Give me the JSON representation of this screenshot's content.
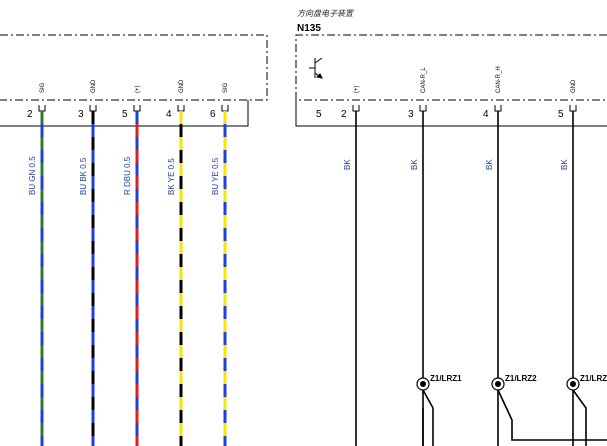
{
  "components": {
    "n135": {
      "description": "方向盘电子装置",
      "id": "N135",
      "extra_pin": "5"
    }
  },
  "left_wires": [
    {
      "pin": "2",
      "function": "SIG",
      "label": "BU GN 0.5",
      "colors": [
        "#1f3fd6",
        "#2e7d32"
      ]
    },
    {
      "pin": "3",
      "function": "GND",
      "label": "BU BK 0.5",
      "colors": [
        "#1f3fd6",
        "#000000"
      ]
    },
    {
      "pin": "5",
      "function": "(+)",
      "label": "R DBU 0.5",
      "colors": [
        "#e02020",
        "#1f3fd6"
      ]
    },
    {
      "pin": "4",
      "function": "GND",
      "label": "BK YE 0.5",
      "colors": [
        "#000000",
        "#f6e600"
      ]
    },
    {
      "pin": "6",
      "function": "SIG",
      "label": "BU YE 0.5",
      "colors": [
        "#1f3fd6",
        "#f6e600"
      ]
    }
  ],
  "right_wires": [
    {
      "pin": "2",
      "function": "(+)",
      "label": "BK",
      "connector": ""
    },
    {
      "pin": "3",
      "function": "CAN-R_L",
      "label": "BK",
      "connector": "Z1/LRZ1"
    },
    {
      "pin": "4",
      "function": "CAN-R_H",
      "label": "BK",
      "connector": "Z1/LRZ2"
    },
    {
      "pin": "5",
      "function": "GND",
      "label": "BK",
      "connector": "Z1/LRZ"
    }
  ]
}
